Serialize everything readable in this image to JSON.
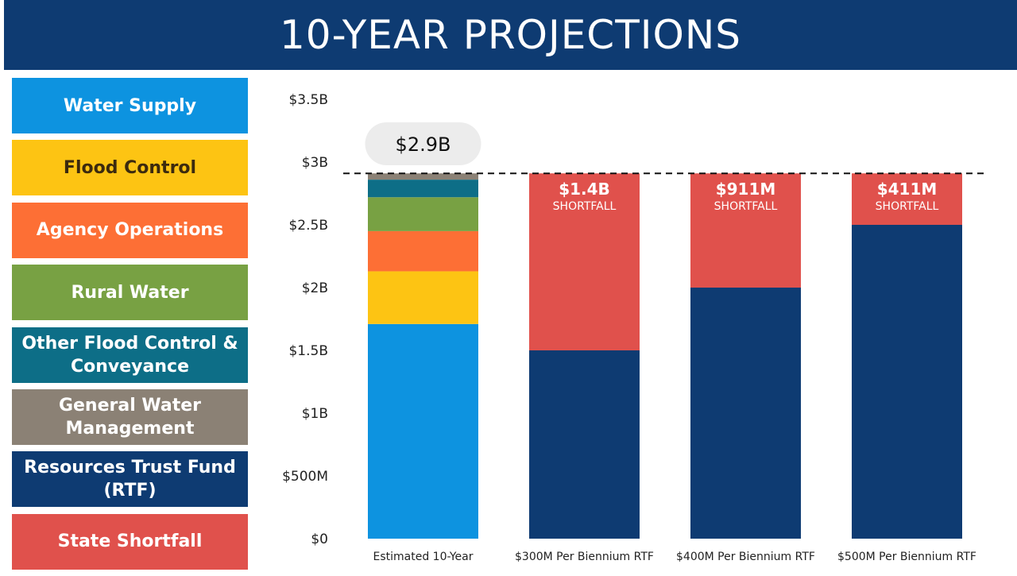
{
  "header": {
    "title": "10-YEAR PROJECTIONS"
  },
  "legend": [
    {
      "label": "Water Supply",
      "color": "#0d93e0"
    },
    {
      "label": "Flood Control",
      "color": "#fdc413"
    },
    {
      "label": "Agency Operations",
      "color": "#fd6f35"
    },
    {
      "label": "Rural Water",
      "color": "#78a143"
    },
    {
      "label": "Other Flood Control & Conveyance",
      "color": "#0d6e87"
    },
    {
      "label": "General Water Management",
      "color": "#8b8175"
    },
    {
      "label": "Resources Trust Fund (RTF)",
      "color": "#0e3b72"
    },
    {
      "label": "State Shortfall",
      "color": "#e0514c"
    }
  ],
  "chart_data": {
    "type": "bar",
    "stacked": true,
    "ylim": [
      0,
      3.5
    ],
    "yticks": [
      {
        "value": 0,
        "label": "$0"
      },
      {
        "value": 0.5,
        "label": "$500M"
      },
      {
        "value": 1.0,
        "label": "$1B"
      },
      {
        "value": 1.5,
        "label": "$1.5B"
      },
      {
        "value": 2.0,
        "label": "$2B"
      },
      {
        "value": 2.5,
        "label": "$2.5B"
      },
      {
        "value": 3.0,
        "label": "$3B"
      },
      {
        "value": 3.5,
        "label": "$3.5B"
      }
    ],
    "reference_line": {
      "value": 2.91,
      "style": "dashed"
    },
    "categories": [
      "Estimated 10-Year",
      "$300M Per Biennium RTF",
      "$400M Per Biennium RTF",
      "$500M Per Biennium RTF"
    ],
    "series": [
      {
        "name": "Water Supply",
        "color": "#0d93e0",
        "values": [
          1.71,
          0,
          0,
          0
        ]
      },
      {
        "name": "Flood Control",
        "color": "#fdc413",
        "values": [
          0.42,
          0,
          0,
          0
        ]
      },
      {
        "name": "Agency Operations",
        "color": "#fd6f35",
        "values": [
          0.32,
          0,
          0,
          0
        ]
      },
      {
        "name": "Rural Water",
        "color": "#78a143",
        "values": [
          0.27,
          0,
          0,
          0
        ]
      },
      {
        "name": "Other Flood Control & Conveyance",
        "color": "#0d6e87",
        "values": [
          0.14,
          0,
          0,
          0
        ]
      },
      {
        "name": "General Water Management",
        "color": "#8b8175",
        "values": [
          0.05,
          0,
          0,
          0
        ]
      },
      {
        "name": "Resources Trust Fund (RTF)",
        "color": "#0e3b72",
        "values": [
          0,
          1.5,
          2.0,
          2.5
        ]
      },
      {
        "name": "State Shortfall",
        "color": "#e0514c",
        "values": [
          0,
          1.41,
          0.91,
          0.41
        ]
      }
    ],
    "total_callout": "$2.9B",
    "bar_labels": [
      null,
      {
        "value": "$1.4B",
        "sub": "SHORTFALL"
      },
      {
        "value": "$911M",
        "sub": "SHORTFALL"
      },
      {
        "value": "$411M",
        "sub": "SHORTFALL"
      }
    ]
  }
}
